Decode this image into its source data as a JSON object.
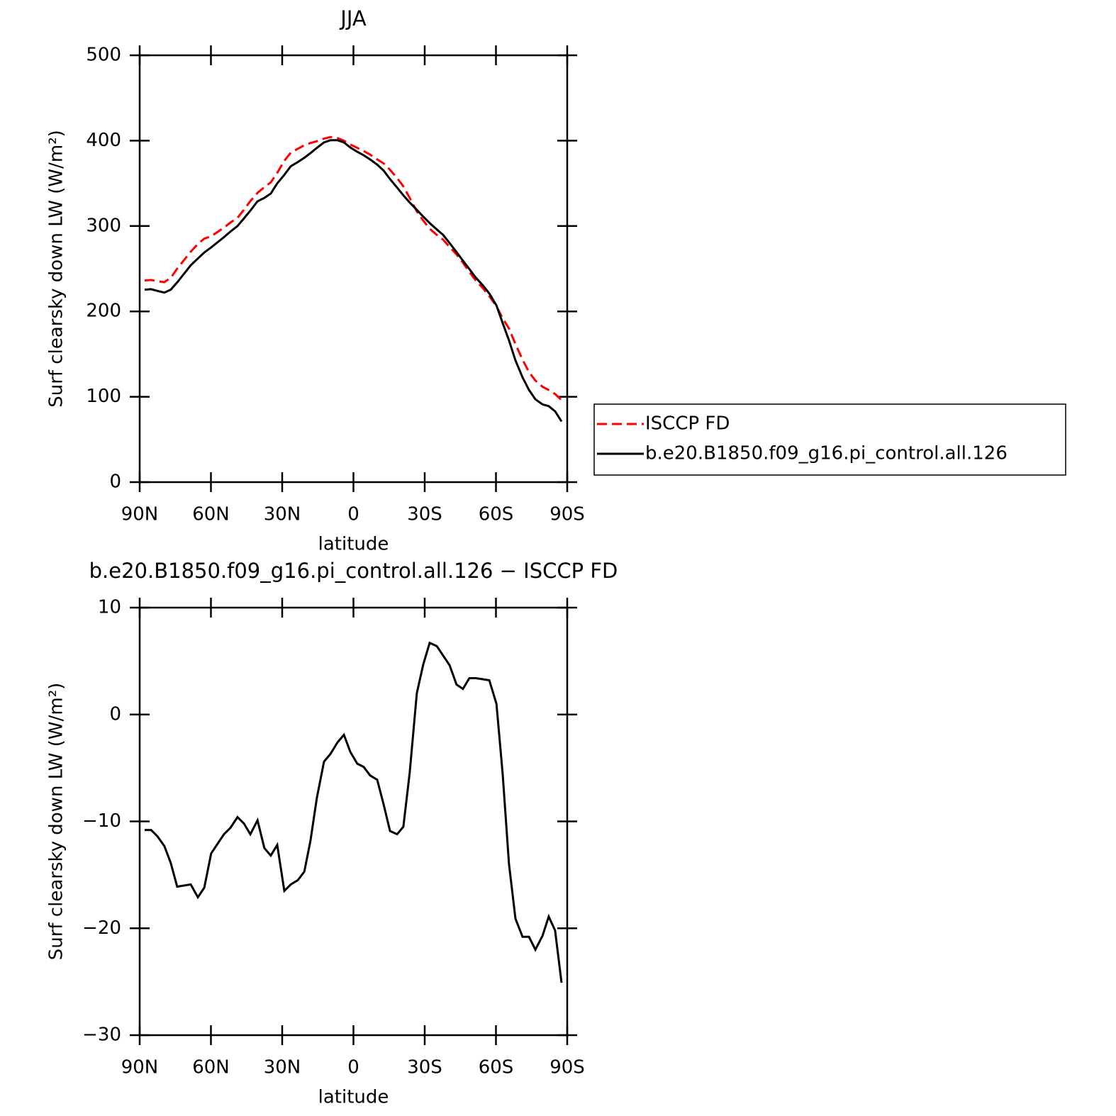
{
  "chart_data": [
    {
      "type": "line",
      "title": "JJA",
      "xlabel": "latitude",
      "ylabel": "Surf clearsky down LW (W/m²)",
      "xlim": [
        90,
        -90
      ],
      "ylim": [
        0,
        500
      ],
      "xticks": [
        {
          "value": 90,
          "label": "90N"
        },
        {
          "value": 60,
          "label": "60N"
        },
        {
          "value": 30,
          "label": "30N"
        },
        0,
        {
          "value": -30,
          "label": "30S"
        },
        {
          "value": -60,
          "label": "60S"
        },
        {
          "value": -90,
          "label": "90S"
        }
      ],
      "yticks": [
        0,
        100,
        200,
        300,
        400,
        500
      ],
      "legend": "right",
      "x": [
        87.9,
        85.2,
        82.5,
        79.6,
        76.9,
        74.2,
        68.5,
        65.5,
        62.8,
        59.9,
        54.5,
        51.8,
        48.8,
        46.1,
        43.4,
        40.4,
        37.5,
        34.8,
        32.1,
        29.1,
        26.4,
        23.4,
        20.7,
        18.1,
        15.4,
        12.4,
        9.7,
        6.7,
        4.0,
        1.3,
        -1.6,
        -4.3,
        -7.0,
        -10.0,
        -12.7,
        -15.4,
        -18.4,
        -21.0,
        -23.7,
        -26.7,
        -29.4,
        -32.1,
        -35.1,
        -37.8,
        -40.5,
        -43.4,
        -46.1,
        -48.8,
        -51.5,
        -54.5,
        -57.2,
        -60.2,
        -62.8,
        -65.5,
        -68.2,
        -71.2,
        -73.9,
        -76.6,
        -79.6,
        -82.2,
        -84.9,
        -87.6
      ],
      "series": [
        {
          "name": "ISCCP FD",
          "color": "#ff0000",
          "dash": true,
          "values": [
            236.3,
            236.8,
            235.4,
            234.3,
            239.4,
            250.1,
            269.9,
            279.1,
            285.2,
            288,
            298.2,
            304.1,
            309.6,
            319.2,
            329.2,
            338.9,
            345.5,
            351.2,
            362.2,
            376.5,
            385.9,
            390.5,
            394.7,
            397.3,
            399.3,
            402.4,
            404.2,
            403.1,
            399.9,
            395.5,
            391.6,
            387.9,
            383.7,
            378.1,
            373.4,
            365.9,
            356.2,
            346.5,
            332.9,
            317,
            306.3,
            296.8,
            289.6,
            284,
            275.4,
            266.7,
            257.1,
            246.2,
            236.2,
            227.2,
            217.8,
            206,
            192,
            180,
            161.7,
            143.5,
            128.8,
            119,
            111.7,
            107.9,
            103.2,
            96.1
          ]
        },
        {
          "name": "b.e20.B1850.f09_g16.pi_control.all.126",
          "color": "#000000",
          "dash": false,
          "values": [
            225.5,
            226,
            224,
            222,
            225.5,
            234,
            254,
            262,
            269,
            275,
            287,
            293.5,
            300,
            309,
            318,
            329,
            333,
            338,
            350,
            360,
            370,
            375,
            380,
            385.5,
            391.5,
            398,
            400.5,
            400.5,
            398,
            392,
            387,
            383,
            378,
            372,
            365,
            355,
            345,
            336,
            327.5,
            319,
            311,
            303.5,
            296,
            289.5,
            280,
            269.5,
            259.5,
            249.6,
            239.6,
            230.5,
            221,
            207,
            186.5,
            166,
            142.6,
            122.7,
            108,
            97,
            91,
            89,
            83,
            71
          ]
        }
      ]
    },
    {
      "type": "line",
      "title": "b.e20.B1850.f09_g16.pi_control.all.126 − ISCCP FD",
      "xlabel": "latitude",
      "ylabel": "Surf clearsky down LW (W/m²)",
      "xlim": [
        90,
        -90
      ],
      "ylim": [
        -30,
        10
      ],
      "xticks": [
        {
          "value": 90,
          "label": "90N"
        },
        {
          "value": 60,
          "label": "60N"
        },
        {
          "value": 30,
          "label": "30N"
        },
        0,
        {
          "value": -30,
          "label": "30S"
        },
        {
          "value": -60,
          "label": "60S"
        },
        {
          "value": -90,
          "label": "90S"
        }
      ],
      "yticks": [
        {
          "value": -30,
          "label": "−30"
        },
        {
          "value": -20,
          "label": "−20"
        },
        {
          "value": -10,
          "label": "−10"
        },
        0,
        10
      ],
      "x": [
        87.9,
        85.2,
        82.5,
        79.6,
        76.9,
        74.2,
        68.5,
        65.5,
        62.8,
        59.9,
        54.5,
        51.8,
        48.8,
        46.1,
        43.4,
        40.4,
        37.5,
        34.8,
        32.1,
        29.1,
        26.4,
        23.4,
        20.7,
        18.1,
        15.4,
        12.4,
        9.7,
        6.7,
        4.0,
        1.3,
        -1.6,
        -4.3,
        -7.0,
        -10.0,
        -12.7,
        -15.4,
        -18.4,
        -21.0,
        -23.7,
        -26.7,
        -29.4,
        -32.1,
        -35.1,
        -37.8,
        -40.5,
        -43.4,
        -46.1,
        -48.8,
        -51.5,
        -54.5,
        -57.2,
        -60.2,
        -62.8,
        -65.5,
        -68.2,
        -71.2,
        -73.9,
        -76.6,
        -79.6,
        -82.2,
        -84.9,
        -87.6
      ],
      "series": [
        {
          "color": "#000000",
          "dash": false,
          "values": [
            -10.8,
            -10.8,
            -11.4,
            -12.3,
            -13.9,
            -16.1,
            -15.9,
            -17.1,
            -16.2,
            -13.0,
            -11.2,
            -10.6,
            -9.6,
            -10.2,
            -11.2,
            -9.9,
            -12.5,
            -13.2,
            -12.2,
            -16.5,
            -15.9,
            -15.5,
            -14.7,
            -11.8,
            -7.8,
            -4.4,
            -3.7,
            -2.6,
            -1.9,
            -3.5,
            -4.6,
            -4.9,
            -5.7,
            -6.1,
            -8.4,
            -10.9,
            -11.2,
            -10.5,
            -5.4,
            2.0,
            4.7,
            6.7,
            6.4,
            5.5,
            4.6,
            2.8,
            2.4,
            3.4,
            3.4,
            3.3,
            3.2,
            1.0,
            -5.5,
            -14.0,
            -19.1,
            -20.8,
            -20.8,
            -22.0,
            -20.7,
            -18.9,
            -20.2,
            -25.1
          ]
        }
      ]
    }
  ]
}
